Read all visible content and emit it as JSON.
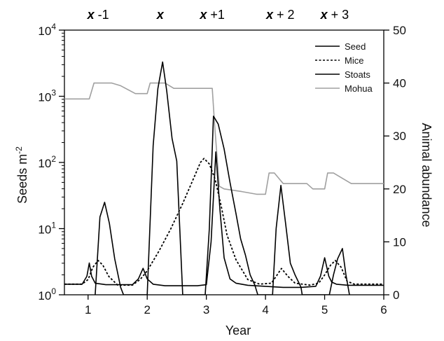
{
  "chart_data": {
    "type": "line",
    "title": "",
    "xlabel": "Year",
    "ylabel_left": "Seeds m",
    "ylabel_left_sup": "-2",
    "ylabel_right": "Animal abundance",
    "xlim": [
      0.6,
      6
    ],
    "x_ticks": [
      1,
      2,
      3,
      4,
      5,
      6
    ],
    "x_tick_labels": [
      "1",
      "2",
      "3",
      "4",
      "5",
      "6"
    ],
    "y_left_scale": "log",
    "y_left_lim": [
      1,
      10000
    ],
    "y_left_tick_labels": [
      {
        "base": "10",
        "exp": "0"
      },
      {
        "base": "10",
        "exp": "1"
      },
      {
        "base": "10",
        "exp": "2"
      },
      {
        "base": "10",
        "exp": "3"
      },
      {
        "base": "10",
        "exp": "4"
      }
    ],
    "y_right_lim": [
      0,
      50
    ],
    "y_right_ticks": [
      0,
      10,
      20,
      30,
      40,
      50
    ],
    "y_right_tick_labels": [
      "0",
      "10",
      "20",
      "30",
      "40",
      "50"
    ],
    "grid": false,
    "legend_position": "top-right",
    "top_labels": [
      {
        "x": 1.17,
        "bold": "x",
        "rest": " -1"
      },
      {
        "x": 2.22,
        "bold": "x",
        "rest": ""
      },
      {
        "x": 3.1,
        "bold": "x",
        "rest": " +1"
      },
      {
        "x": 4.25,
        "bold": "x",
        "rest": " + 2"
      },
      {
        "x": 5.17,
        "bold": "x",
        "rest": " + 3"
      }
    ],
    "series": [
      {
        "name": "Seed",
        "axis": "left",
        "color": "#000000",
        "dash": "solid",
        "points": [
          [
            1.12,
            1
          ],
          [
            1.2,
            15
          ],
          [
            1.28,
            25
          ],
          [
            1.36,
            12
          ],
          [
            1.45,
            3.5
          ],
          [
            1.55,
            1.3
          ],
          [
            1.6,
            1
          ],
          [
            2.0,
            1
          ],
          [
            2.1,
            180
          ],
          [
            2.18,
            1300
          ],
          [
            2.26,
            3300
          ],
          [
            2.33,
            1200
          ],
          [
            2.42,
            230
          ],
          [
            2.5,
            105
          ],
          [
            2.6,
            1
          ],
          [
            2.98,
            1
          ],
          [
            3.05,
            10
          ],
          [
            3.12,
            500
          ],
          [
            3.2,
            380
          ],
          [
            3.3,
            160
          ],
          [
            3.4,
            50
          ],
          [
            3.5,
            17
          ],
          [
            3.58,
            7
          ],
          [
            3.66,
            4
          ],
          [
            3.74,
            2
          ],
          [
            3.82,
            1.4
          ],
          [
            3.87,
            1
          ],
          [
            4.12,
            1
          ],
          [
            4.18,
            10
          ],
          [
            4.26,
            45
          ],
          [
            4.34,
            12
          ],
          [
            4.42,
            3
          ],
          [
            4.5,
            2
          ],
          [
            4.6,
            1.3
          ],
          [
            4.62,
            1
          ],
          [
            5.08,
            1
          ],
          [
            5.15,
            2
          ],
          [
            5.22,
            3.5
          ],
          [
            5.3,
            5
          ],
          [
            5.36,
            2
          ],
          [
            5.42,
            1
          ]
        ]
      },
      {
        "name": "Mice",
        "axis": "left",
        "color": "#000000",
        "dash": "dotted",
        "points": [
          [
            0.6,
            1.45
          ],
          [
            0.9,
            1.45
          ],
          [
            1.0,
            1.7
          ],
          [
            1.08,
            2.6
          ],
          [
            1.17,
            3.3
          ],
          [
            1.25,
            2.8
          ],
          [
            1.35,
            1.9
          ],
          [
            1.5,
            1.4
          ],
          [
            1.75,
            1.4
          ],
          [
            1.88,
            1.7
          ],
          [
            2.0,
            2.3
          ],
          [
            2.2,
            4.6
          ],
          [
            2.4,
            10
          ],
          [
            2.6,
            24
          ],
          [
            2.8,
            62
          ],
          [
            2.9,
            100
          ],
          [
            2.96,
            115
          ],
          [
            3.05,
            95
          ],
          [
            3.15,
            55
          ],
          [
            3.25,
            22
          ],
          [
            3.35,
            8
          ],
          [
            3.5,
            3.4
          ],
          [
            3.7,
            1.7
          ],
          [
            3.9,
            1.45
          ],
          [
            4.1,
            1.5
          ],
          [
            4.18,
            1.9
          ],
          [
            4.27,
            2.5
          ],
          [
            4.38,
            1.9
          ],
          [
            4.5,
            1.5
          ],
          [
            4.75,
            1.4
          ],
          [
            4.9,
            1.5
          ],
          [
            5.0,
            2.0
          ],
          [
            5.1,
            2.8
          ],
          [
            5.18,
            3.3
          ],
          [
            5.28,
            2.6
          ],
          [
            5.38,
            1.6
          ],
          [
            5.5,
            1.45
          ],
          [
            6.0,
            1.45
          ]
        ]
      },
      {
        "name": "Stoats",
        "axis": "right",
        "color": "#000000",
        "dash": "solid",
        "points": [
          [
            0.6,
            2
          ],
          [
            0.9,
            2
          ],
          [
            0.98,
            3.5
          ],
          [
            1.02,
            6
          ],
          [
            1.06,
            3.5
          ],
          [
            1.12,
            2.2
          ],
          [
            1.3,
            1.9
          ],
          [
            1.75,
            1.9
          ],
          [
            1.85,
            3
          ],
          [
            1.93,
            5
          ],
          [
            2.0,
            3
          ],
          [
            2.1,
            2
          ],
          [
            2.3,
            1.7
          ],
          [
            2.85,
            1.7
          ],
          [
            3.0,
            1.9
          ],
          [
            3.08,
            10
          ],
          [
            3.16,
            27
          ],
          [
            3.23,
            16
          ],
          [
            3.3,
            7
          ],
          [
            3.4,
            3
          ],
          [
            3.5,
            2.2
          ],
          [
            3.7,
            1.8
          ],
          [
            4.0,
            1.6
          ],
          [
            4.3,
            1.4
          ],
          [
            4.6,
            1.4
          ],
          [
            4.85,
            1.6
          ],
          [
            4.93,
            3.5
          ],
          [
            5.0,
            7
          ],
          [
            5.07,
            3.5
          ],
          [
            5.12,
            2.4
          ],
          [
            5.2,
            2
          ],
          [
            5.4,
            1.8
          ],
          [
            6.0,
            1.8
          ]
        ]
      },
      {
        "name": "Mohua",
        "axis": "right",
        "color": "#a0a0a0",
        "dash": "solid",
        "points": [
          [
            0.6,
            37
          ],
          [
            1.02,
            37
          ],
          [
            1.1,
            40
          ],
          [
            1.4,
            40
          ],
          [
            1.55,
            39.5
          ],
          [
            1.8,
            38
          ],
          [
            2.0,
            38
          ],
          [
            2.05,
            40
          ],
          [
            2.3,
            40
          ],
          [
            2.45,
            39
          ],
          [
            3.1,
            39
          ],
          [
            3.14,
            32
          ],
          [
            3.22,
            20.5
          ],
          [
            3.3,
            20
          ],
          [
            3.6,
            19.5
          ],
          [
            3.85,
            19
          ],
          [
            4.0,
            19
          ],
          [
            4.06,
            23
          ],
          [
            4.15,
            23
          ],
          [
            4.3,
            21
          ],
          [
            4.7,
            21
          ],
          [
            4.8,
            20
          ],
          [
            5.0,
            20
          ],
          [
            5.05,
            23
          ],
          [
            5.15,
            23
          ],
          [
            5.45,
            21
          ],
          [
            6.0,
            21
          ]
        ]
      }
    ]
  }
}
